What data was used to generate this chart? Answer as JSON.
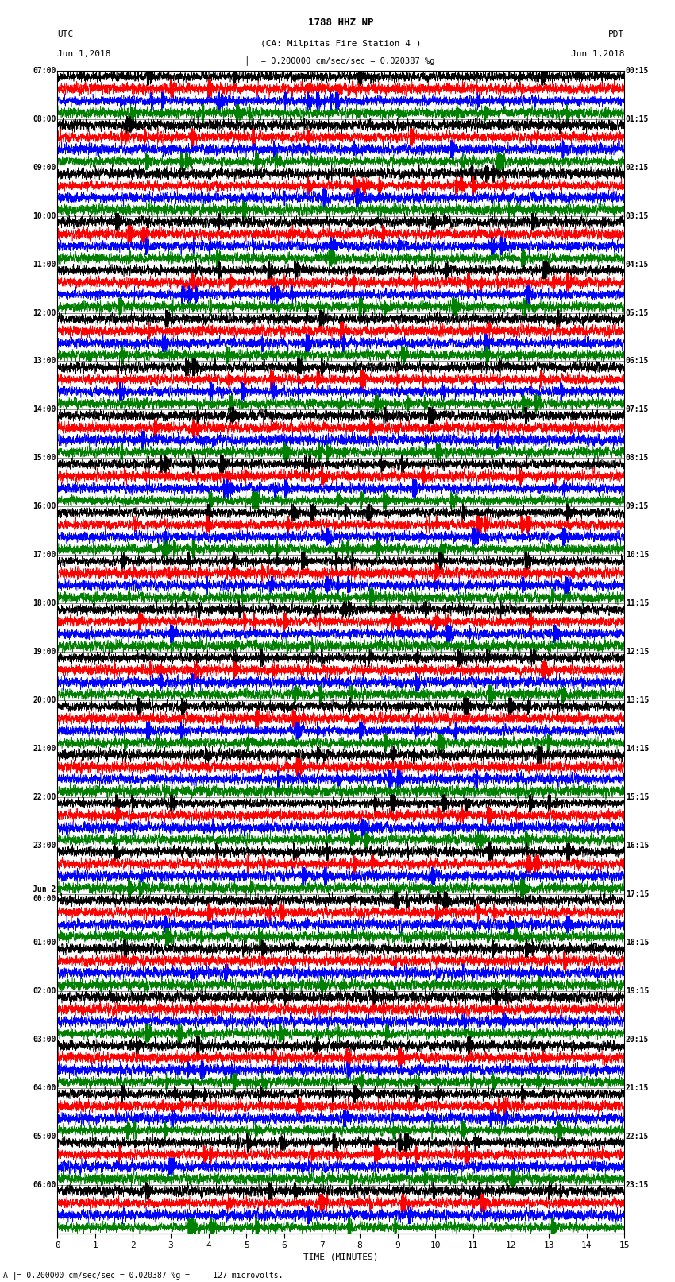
{
  "title_line1": "1788 HHZ NP",
  "title_line2": "(CA: Milpitas Fire Station 4 )",
  "left_header": "UTC",
  "right_header": "PDT",
  "left_date": "Jun 1,2018",
  "right_date": "Jun 1,2018",
  "scale_text": "= 0.200000 cm/sec/sec = 0.020387 %g",
  "bottom_label": "TIME (MINUTES)",
  "bottom_note": "A |= 0.200000 cm/sec/sec = 0.020387 %g =     127 microvolts.",
  "xlabel_ticks": [
    0,
    1,
    2,
    3,
    4,
    5,
    6,
    7,
    8,
    9,
    10,
    11,
    12,
    13,
    14,
    15
  ],
  "left_time_labels": [
    "07:00",
    "08:00",
    "09:00",
    "10:00",
    "11:00",
    "12:00",
    "13:00",
    "14:00",
    "15:00",
    "16:00",
    "17:00",
    "18:00",
    "19:00",
    "20:00",
    "21:00",
    "22:00",
    "23:00",
    "Jun 2\n00:00",
    "01:00",
    "02:00",
    "03:00",
    "04:00",
    "05:00",
    "06:00"
  ],
  "right_time_labels": [
    "00:15",
    "01:15",
    "02:15",
    "03:15",
    "04:15",
    "05:15",
    "06:15",
    "07:15",
    "08:15",
    "09:15",
    "10:15",
    "11:15",
    "12:15",
    "13:15",
    "14:15",
    "15:15",
    "16:15",
    "17:15",
    "18:15",
    "19:15",
    "20:15",
    "21:15",
    "22:15",
    "23:15"
  ],
  "n_rows": 24,
  "traces_per_row": 4,
  "colors": [
    "black",
    "red",
    "blue",
    "green"
  ],
  "bg_color": "white",
  "line_width": 0.4,
  "figure_width": 8.5,
  "figure_height": 16.13,
  "dpi": 100,
  "xmin": 0,
  "xmax": 15,
  "n_points": 9000
}
